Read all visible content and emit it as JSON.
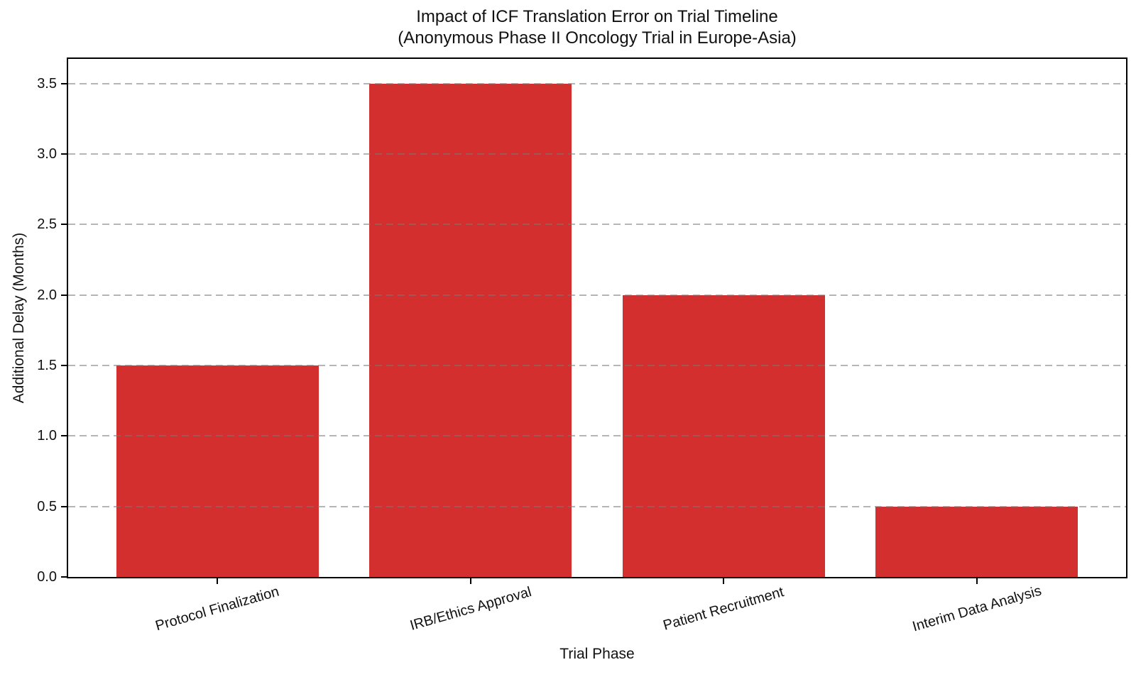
{
  "chart_data": {
    "type": "bar",
    "title_line1": "Impact of ICF Translation Error on Trial Timeline",
    "title_line2": "(Anonymous Phase II Oncology Trial in Europe-Asia)",
    "xlabel": "Trial Phase",
    "ylabel": "Additional Delay (Months)",
    "categories": [
      "Protocol Finalization",
      "IRB/Ethics Approval",
      "Patient Recruitment",
      "Interim Data Analysis"
    ],
    "values": [
      1.5,
      3.5,
      2.0,
      0.5
    ],
    "bar_color": "#d32f2f",
    "bar_width": 0.8,
    "xlim": [
      -0.59,
      3.59
    ],
    "ylim": [
      0,
      3.675
    ],
    "yticks": [
      0.0,
      0.5,
      1.0,
      1.5,
      2.0,
      2.5,
      3.0,
      3.5
    ],
    "ytick_labels": [
      "0.0",
      "0.5",
      "1.0",
      "1.5",
      "2.0",
      "2.5",
      "3.0",
      "3.5"
    ],
    "grid": true,
    "grid_axis": "y",
    "grid_linestyle": "dashed",
    "grid_color": "#ababab",
    "grid_above_bars": true,
    "legend_position": "none",
    "xtick_rotation_deg": 16,
    "spine_color": "#000000",
    "text_color": "#111111",
    "background_color": "#ffffff"
  }
}
